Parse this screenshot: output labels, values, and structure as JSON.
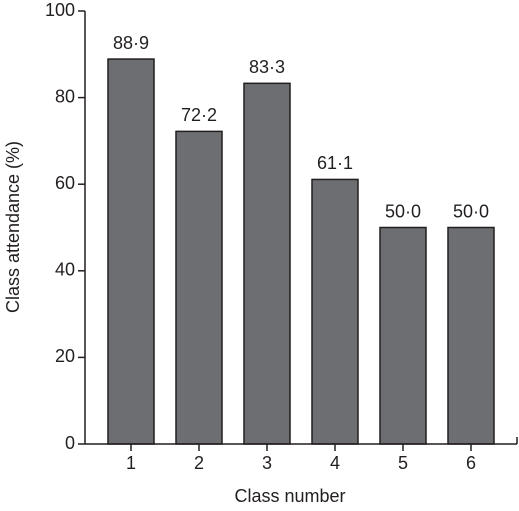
{
  "chart_data": {
    "type": "bar",
    "categories": [
      "1",
      "2",
      "3",
      "4",
      "5",
      "6"
    ],
    "values": [
      88.9,
      72.2,
      83.3,
      61.1,
      50.0,
      50.0
    ],
    "value_labels": [
      "88·9",
      "72·2",
      "83·3",
      "61·1",
      "50·0",
      "50·0"
    ],
    "color": "#6d6e71",
    "x_label": "Class number",
    "y_label": "Class attendance (%)",
    "ylim": [
      0,
      100
    ],
    "yticks": [
      0,
      20,
      40,
      60,
      80,
      100
    ]
  }
}
